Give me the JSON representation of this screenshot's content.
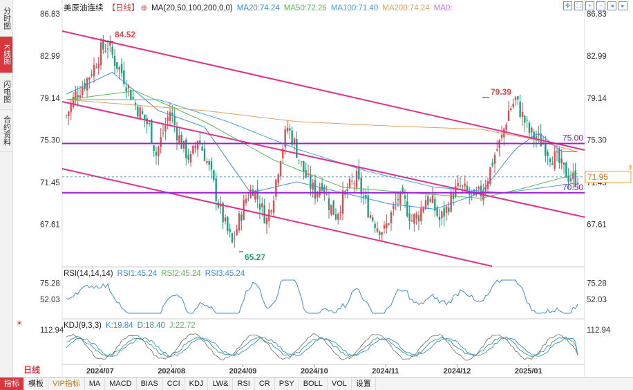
{
  "sidebar": {
    "tabs": [
      {
        "label": "分时图",
        "active": false
      },
      {
        "label": "K线图",
        "active": true
      },
      {
        "label": "闪电图",
        "active": false
      },
      {
        "label": "合约资料",
        "active": false
      }
    ]
  },
  "legend": {
    "symbol": "美原油连续",
    "period": "【日线】",
    "ma_params": "MA(20,50,100,200,0,0)",
    "ma20": "MA20:74.24",
    "ma50": "MA50:72.26",
    "ma100": "MA100:71.40",
    "ma200": "MA200:74.24",
    "ma0": "MA0:"
  },
  "rsi_legend": {
    "params": "RSI(14,14,14)",
    "rsi1": "RSI1:45.24",
    "rsi2": "RSI2:45.24",
    "rsi3": "RSI3:45.24"
  },
  "kdj_legend": {
    "params": "KDJ(9,3,3)",
    "k": "K:19.84",
    "d": "D:18.40",
    "j": "J:22.72"
  },
  "period_label": "日线",
  "bottom_tabs": [
    "指标",
    "模板",
    "VIP指标",
    "MA",
    "MACD",
    "BIAS",
    "CCI",
    "KDJ",
    "LW&",
    "RSI",
    "CR",
    "PSY",
    "BOLL",
    "VOL",
    "设置"
  ],
  "colors": {
    "up": "#e8474b",
    "down": "#1aa07a",
    "ma20": "#3b8fd9",
    "ma50": "#5cb85c",
    "ma100": "#4aa3df",
    "ma200": "#e0a060",
    "channel": "#e0308a",
    "hline": "#9b1fd6",
    "rsi": "#3b8fd9",
    "kdj_k": "#3b8fd9",
    "kdj_d": "#3a9a8a",
    "kdj_j": "#7a7a7a"
  },
  "chart_data": [
    {
      "type": "candlestick",
      "title": "美原油连续 日线",
      "y_ticks": [
        "86.83",
        "82.99",
        "79.14",
        "75.30",
        "71.45",
        "67.61"
      ],
      "y_tick_values": [
        86.83,
        82.99,
        79.14,
        75.3,
        71.45,
        67.61
      ],
      "ylim": [
        63.8,
        86.83
      ],
      "x_ticks": [
        "2024/07",
        "2024/08",
        "2024/09",
        "2024/10",
        "2024/11",
        "2024/12",
        "2025/01"
      ],
      "annotations": {
        "high": "84.52",
        "low": "65.27",
        "recent_high": "79.39"
      },
      "horizontal_lines": [
        {
          "value": 75.0,
          "label": "75.00"
        },
        {
          "value": 70.5,
          "label": "70.50"
        }
      ],
      "last_price": "71.95",
      "close_path": [
        [
          0,
          77.5
        ],
        [
          4,
          79.5
        ],
        [
          8,
          80.5
        ],
        [
          12,
          82.0
        ],
        [
          15,
          83.5
        ],
        [
          18,
          84.0
        ],
        [
          21,
          82.5
        ],
        [
          24,
          81.5
        ],
        [
          27,
          80.0
        ],
        [
          30,
          78.5
        ],
        [
          33,
          77.5
        ],
        [
          36,
          76.5
        ],
        [
          39,
          74.0
        ],
        [
          42,
          76.0
        ],
        [
          45,
          78.0
        ],
        [
          48,
          76.0
        ],
        [
          51,
          74.5
        ],
        [
          54,
          73.5
        ],
        [
          57,
          75.5
        ],
        [
          60,
          74.0
        ],
        [
          63,
          72.0
        ],
        [
          66,
          69.5
        ],
        [
          69,
          67.5
        ],
        [
          72,
          65.8
        ],
        [
          75,
          68.0
        ],
        [
          78,
          70.0
        ],
        [
          81,
          71.0
        ],
        [
          84,
          69.5
        ],
        [
          87,
          68.0
        ],
        [
          90,
          70.5
        ],
        [
          93,
          74.0
        ],
        [
          96,
          76.5
        ],
        [
          99,
          75.0
        ],
        [
          102,
          73.0
        ],
        [
          105,
          71.5
        ],
        [
          108,
          70.5
        ],
        [
          111,
          71.5
        ],
        [
          114,
          69.5
        ],
        [
          117,
          68.5
        ],
        [
          120,
          70.0
        ],
        [
          123,
          71.0
        ],
        [
          126,
          71.8
        ],
        [
          129,
          70.0
        ],
        [
          132,
          68.5
        ],
        [
          135,
          67.5
        ],
        [
          138,
          67.0
        ],
        [
          141,
          68.5
        ],
        [
          144,
          70.0
        ],
        [
          147,
          69.5
        ],
        [
          150,
          68.0
        ],
        [
          153,
          68.5
        ],
        [
          156,
          70.0
        ],
        [
          159,
          69.5
        ],
        [
          162,
          68.0
        ],
        [
          165,
          69.0
        ],
        [
          168,
          70.5
        ],
        [
          171,
          71.0
        ],
        [
          174,
          70.5
        ],
        [
          177,
          70.0
        ],
        [
          180,
          70.5
        ],
        [
          183,
          72.0
        ],
        [
          186,
          74.0
        ],
        [
          189,
          75.5
        ],
        [
          192,
          78.0
        ],
        [
          195,
          79.0
        ],
        [
          198,
          77.5
        ],
        [
          201,
          76.0
        ],
        [
          204,
          75.5
        ],
        [
          207,
          75.0
        ],
        [
          210,
          74.0
        ],
        [
          213,
          73.5
        ],
        [
          216,
          72.5
        ],
        [
          219,
          71.8
        ],
        [
          222,
          71.95
        ]
      ],
      "ma_series": [
        {
          "name": "MA20",
          "values": [
            [
              0,
              79.5
            ],
            [
              20,
              81.5
            ],
            [
              40,
              78.0
            ],
            [
              60,
              76.5
            ],
            [
              80,
              70.5
            ],
            [
              100,
              71.5
            ],
            [
              120,
              70.5
            ],
            [
              140,
              69.5
            ],
            [
              160,
              69.0
            ],
            [
              180,
              70.5
            ],
            [
              195,
              74.5
            ],
            [
              205,
              76.0
            ],
            [
              215,
              74.24
            ],
            [
              222,
              74.24
            ]
          ]
        },
        {
          "name": "MA50",
          "values": [
            [
              0,
              79.0
            ],
            [
              30,
              79.8
            ],
            [
              60,
              77.0
            ],
            [
              90,
              73.5
            ],
            [
              120,
              71.0
            ],
            [
              150,
              70.5
            ],
            [
              180,
              70.0
            ],
            [
              200,
              71.0
            ],
            [
              222,
              72.26
            ]
          ]
        },
        {
          "name": "MA100",
          "values": [
            [
              0,
              79.0
            ],
            [
              40,
              79.0
            ],
            [
              70,
              77.0
            ],
            [
              100,
              74.5
            ],
            [
              130,
              72.5
            ],
            [
              160,
              71.0
            ],
            [
              190,
              70.5
            ],
            [
              222,
              71.4
            ]
          ]
        },
        {
          "name": "MA200",
          "values": [
            [
              0,
              79.0
            ],
            [
              60,
              78.0
            ],
            [
              100,
              77.0
            ],
            [
              140,
              76.6
            ],
            [
              180,
              76.3
            ],
            [
              200,
              75.5
            ],
            [
              222,
              74.24
            ]
          ]
        }
      ]
    },
    {
      "type": "line",
      "title": "RSI(14,14,14)",
      "y_ticks": [
        "75.28",
        "52.03"
      ],
      "y_tick_values": [
        75.28,
        52.03
      ],
      "series": [
        {
          "name": "RSI1",
          "last": 45.24
        }
      ]
    },
    {
      "type": "line",
      "title": "KDJ(9,3,3)",
      "y_ticks": [
        "112.94"
      ],
      "y_tick_values": [
        112.94
      ],
      "series": [
        {
          "name": "K",
          "last": 19.84
        },
        {
          "name": "D",
          "last": 18.4
        },
        {
          "name": "J",
          "last": 22.72
        }
      ]
    }
  ]
}
